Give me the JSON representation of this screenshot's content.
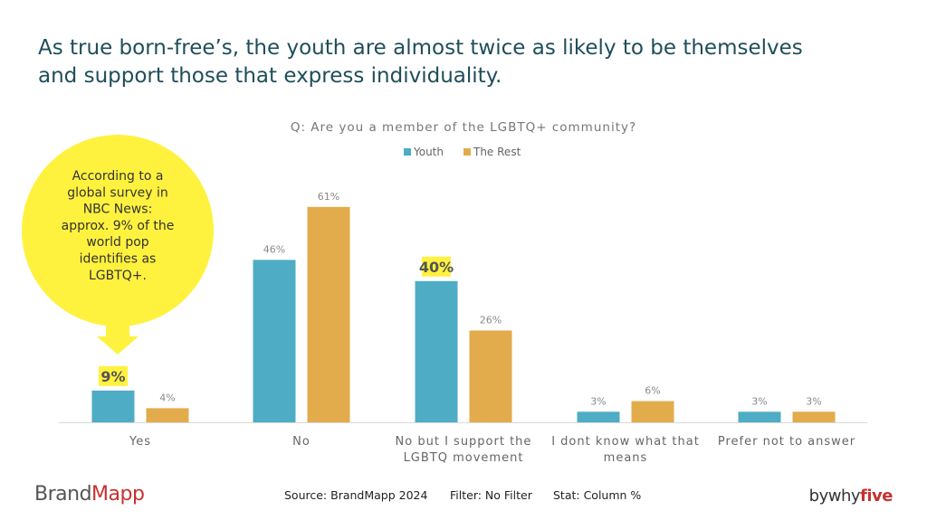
{
  "headline": {
    "line1": "As true born-free’s, the youth are almost twice as likely to be themselves",
    "line2": "and support those that express individuality."
  },
  "callout": {
    "lines": [
      "According to a",
      "global survey in",
      "NBC News:",
      "approx. 9% of the",
      "world pop",
      "identifies as",
      "LGBTQ+."
    ],
    "color": "#fff23f"
  },
  "footer": {
    "source": "Source: BrandMapp 2024",
    "filter": "Filter: No Filter",
    "stat": "Stat: Column %",
    "brand_left_a": "Brand",
    "brand_left_b": "Mapp",
    "brand_right_a": "bywhy",
    "brand_right_b": "five"
  },
  "chart_data": {
    "type": "bar",
    "title": "Q: Are you a member of the LGBTQ+ community?",
    "categories": [
      [
        "Yes"
      ],
      [
        "No"
      ],
      [
        "No but I support the",
        "LGBTQ  movement"
      ],
      [
        "I dont know what that",
        "means"
      ],
      [
        "Prefer not to answer"
      ]
    ],
    "series": [
      {
        "name": "Youth",
        "color": "#4eadc4",
        "values": [
          9,
          46,
          40,
          3,
          3
        ],
        "labels": [
          "9%",
          "46%",
          "40%",
          "3%",
          "3%"
        ],
        "highlight": [
          true,
          false,
          true,
          false,
          false
        ]
      },
      {
        "name": "The Rest",
        "color": "#e2ab4c",
        "values": [
          4,
          61,
          26,
          6,
          3
        ],
        "labels": [
          "4%",
          "61%",
          "26%",
          "6%",
          "3%"
        ],
        "highlight": [
          false,
          false,
          false,
          false,
          false
        ]
      }
    ],
    "ylim": [
      0,
      65
    ],
    "legend_position": "top-center",
    "grid": false
  }
}
